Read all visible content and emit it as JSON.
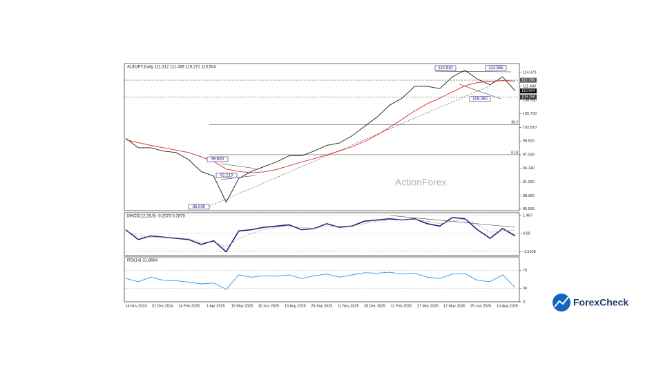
{
  "chart_data": [
    {
      "type": "line",
      "title": "AUDJPY,Daily  111.312 111.439 110.271 110.504",
      "watermark": "ActionForex",
      "series": [
        {
          "color": "#1a1a1a",
          "values": [
            100.5,
            98.5,
            98.5,
            97.8,
            97.5,
            96,
            93.5,
            92.5,
            87,
            92,
            93.5,
            94.5,
            95.5,
            96.8,
            96.8,
            97.8,
            99,
            99.5,
            101,
            103,
            105,
            107.5,
            109,
            111.5,
            111.5,
            111,
            113.5,
            114.9,
            113,
            111.8,
            113.5,
            110.5
          ]
        },
        {
          "color": "#e02020",
          "values": [
            100.2,
            99.6,
            99.0,
            98.5,
            98.0,
            97.5,
            96.6,
            95.6,
            94.0,
            93.5,
            93.2,
            93.4,
            93.9,
            94.7,
            95.5,
            96.2,
            97.0,
            97.8,
            98.7,
            99.8,
            101.2,
            102.8,
            104.5,
            106.3,
            107.8,
            109.0,
            110.3,
            111.6,
            112.3,
            112.5,
            112.7,
            112.6
          ]
        }
      ],
      "ylim": [
        85.2,
        116.3
      ],
      "yticks": [
        {
          "value": 114.37,
          "label": "114.370"
        },
        {
          "value": 111.48,
          "label": "111.480"
        },
        {
          "value": 108.59,
          "label": "108.590"
        },
        {
          "value": 105.7,
          "label": "105.700"
        },
        {
          "value": 102.81,
          "label": "102.810"
        },
        {
          "value": 99.92,
          "label": "99.920"
        },
        {
          "value": 97.03,
          "label": "97.030"
        },
        {
          "value": 94.14,
          "label": "94.140"
        },
        {
          "value": 91.25,
          "label": "91.250"
        },
        {
          "value": 88.36,
          "label": "88.360"
        },
        {
          "value": 85.555,
          "label": "85.555"
        }
      ],
      "price_levels": [
        {
          "value": 112.78,
          "label": "112.780",
          "color": "#555555"
        },
        {
          "value": 110.504,
          "label": "110.504",
          "color": "#000000"
        },
        {
          "value": 109.25,
          "label": "109.250",
          "color": "#333333"
        }
      ],
      "fib_levels": [
        {
          "value": 103.4,
          "label": "38.2"
        },
        {
          "value": 97.03,
          "label": "61.8"
        }
      ],
      "annotations": [
        {
          "value": 114.91,
          "label": "114.910"
        },
        {
          "value": 114.955,
          "label": "114.955"
        },
        {
          "value": 109.25,
          "label": "109.250"
        },
        {
          "value": 95.63,
          "label": "95.630"
        },
        {
          "value": 92.21,
          "label": "92.210"
        },
        {
          "value": 86.03,
          "label": "86.030"
        }
      ],
      "xtick_labels": [
        "14 Nov 2024",
        "31 Dec 2024",
        "14 Feb 2025",
        "1 Apr 2025",
        "15 May 2025",
        "30 Jun 2025",
        "13 Aug 2025",
        "26 Sep 2025",
        "11 Nov 2025",
        "26 Dec 2025",
        "11 Feb 2026",
        "27 Mar 2026",
        "12 May 2026",
        "25 Jun 2026",
        "10 Aug 2026"
      ]
    },
    {
      "type": "line",
      "title": "MACD(12,26,9) -0.2073 0.2873",
      "series": [
        {
          "color": "#1a237e",
          "values": [
            0.3,
            -0.5,
            -0.2,
            -0.3,
            -0.4,
            -0.5,
            -0.9,
            -0.6,
            -1.5,
            0.2,
            0.3,
            0.5,
            0.6,
            0.7,
            0.3,
            0.4,
            0.8,
            0.5,
            0.6,
            1.0,
            1.1,
            1.2,
            1.1,
            1.2,
            0.8,
            0.6,
            1.3,
            1.2,
            0.3,
            -0.4,
            0.4,
            -0.2
          ]
        },
        {
          "color": "#9e9e9e",
          "values": [
            0.2,
            -0.2,
            -0.3,
            -0.3,
            -0.35,
            -0.45,
            -0.7,
            -0.7,
            -1.1,
            -0.4,
            0.0,
            0.3,
            0.5,
            0.6,
            0.5,
            0.4,
            0.6,
            0.6,
            0.6,
            0.8,
            1.0,
            1.1,
            1.1,
            1.15,
            1.0,
            0.8,
            1.0,
            1.15,
            0.7,
            0.1,
            0.2,
            0.29
          ]
        }
      ],
      "ylim": [
        -1.81,
        1.69
      ],
      "yticks": [
        1.467,
        {
          "value": 0,
          "label": "0.00"
        },
        -1.5108
      ]
    },
    {
      "type": "line",
      "title": "RSI(14) 31.8684",
      "series": [
        {
          "color": "#2196f3",
          "values": [
            52,
            45,
            55,
            48,
            47,
            44,
            40,
            42,
            28,
            60,
            55,
            58,
            57,
            60,
            52,
            58,
            62,
            55,
            60,
            65,
            64,
            66,
            62,
            64,
            55,
            52,
            62,
            63,
            48,
            45,
            60,
            32
          ]
        }
      ],
      "ylim": [
        0,
        100
      ],
      "yticks": [
        70,
        30,
        0
      ]
    }
  ],
  "logo": "ForexCheck"
}
